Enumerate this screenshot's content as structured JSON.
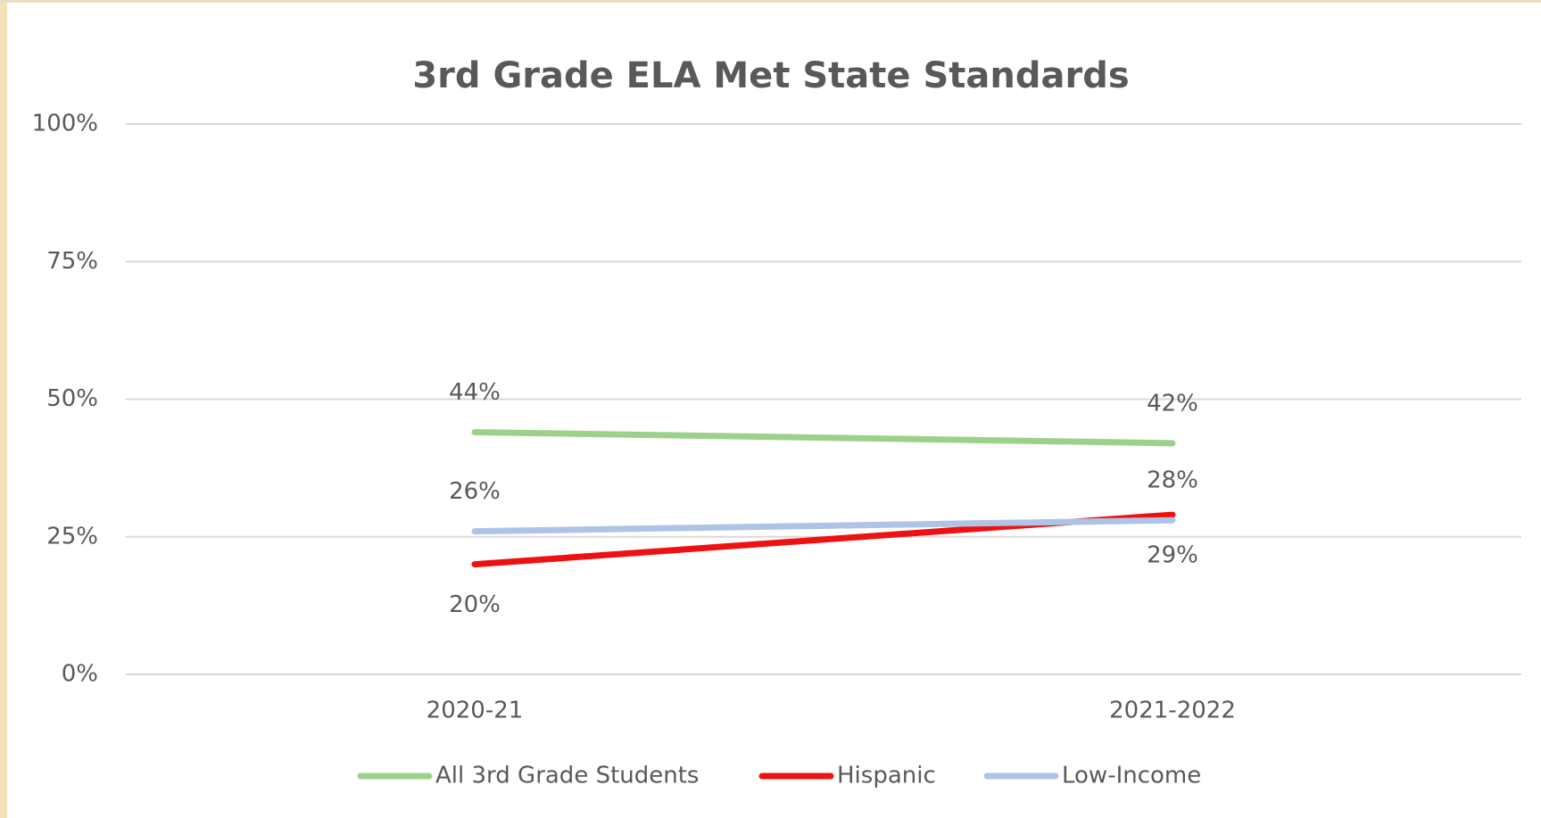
{
  "chart_data": {
    "type": "line",
    "title": "3rd Grade ELA  Met State Standards",
    "categories": [
      "2020-21",
      "2021-2022"
    ],
    "series": [
      {
        "name": "All 3rd Grade Students",
        "color": "#9dd18a",
        "values": [
          44,
          42
        ],
        "value_labels": [
          "44%",
          "42%"
        ]
      },
      {
        "name": "Hispanic",
        "color": "#ee1111",
        "values": [
          20,
          29
        ],
        "value_labels": [
          "20%",
          "29%"
        ]
      },
      {
        "name": "Low-Income",
        "color": "#aec3e6",
        "values": [
          26,
          28
        ],
        "value_labels": [
          "26%",
          "28%"
        ]
      }
    ],
    "ylim": [
      0,
      100
    ],
    "yticks": [
      {
        "value": 0,
        "label": "0%"
      },
      {
        "value": 25,
        "label": "25%"
      },
      {
        "value": 50,
        "label": "50%"
      },
      {
        "value": 75,
        "label": "75%"
      },
      {
        "value": 100,
        "label": "100%"
      }
    ],
    "grid": true,
    "legend": "bottom"
  }
}
